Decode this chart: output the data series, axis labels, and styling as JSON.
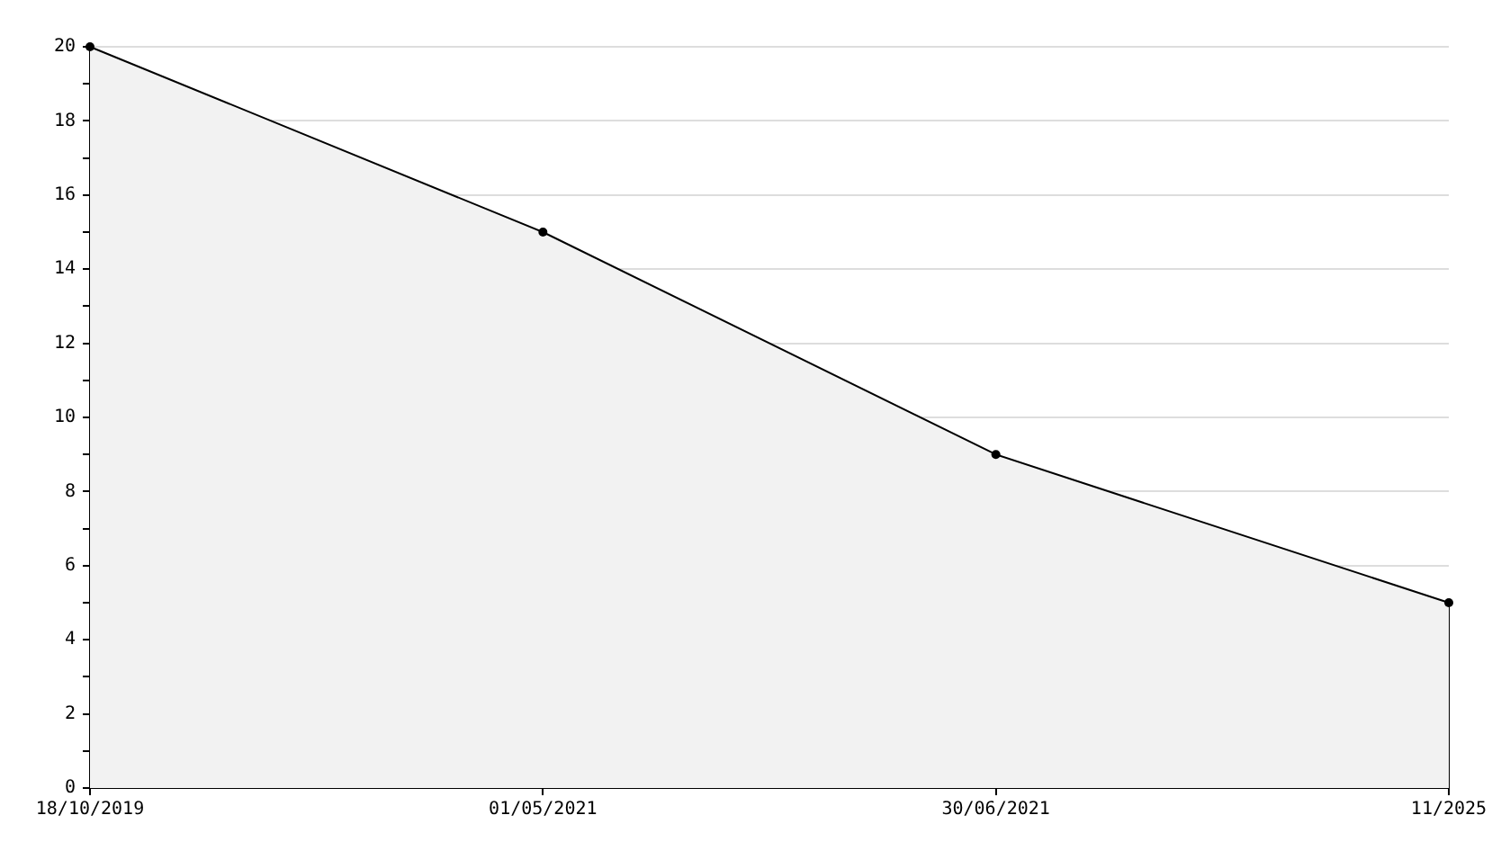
{
  "chart_data": {
    "type": "area",
    "categories": [
      "18/10/2019",
      "01/05/2021",
      "30/06/2021",
      "11/2025"
    ],
    "values": [
      20,
      15,
      9,
      5
    ],
    "color": "#f2f2f2",
    "ylim": [
      0,
      20
    ],
    "yticks": [
      0,
      {
        "value": 1,
        "label": null
      },
      2,
      {
        "value": 3,
        "label": null
      },
      4,
      {
        "value": 5,
        "label": null
      },
      6,
      {
        "value": 7,
        "label": null
      },
      8,
      {
        "value": 9,
        "label": null
      },
      10,
      {
        "value": 11,
        "label": null
      },
      12,
      {
        "value": 13,
        "label": null
      },
      14,
      {
        "value": 15,
        "label": null
      },
      16,
      {
        "value": 17,
        "label": null
      },
      18,
      {
        "value": 19,
        "label": null
      },
      20
    ],
    "grid": "y",
    "legend": false,
    "marker": "circle",
    "line_style": "solid"
  }
}
